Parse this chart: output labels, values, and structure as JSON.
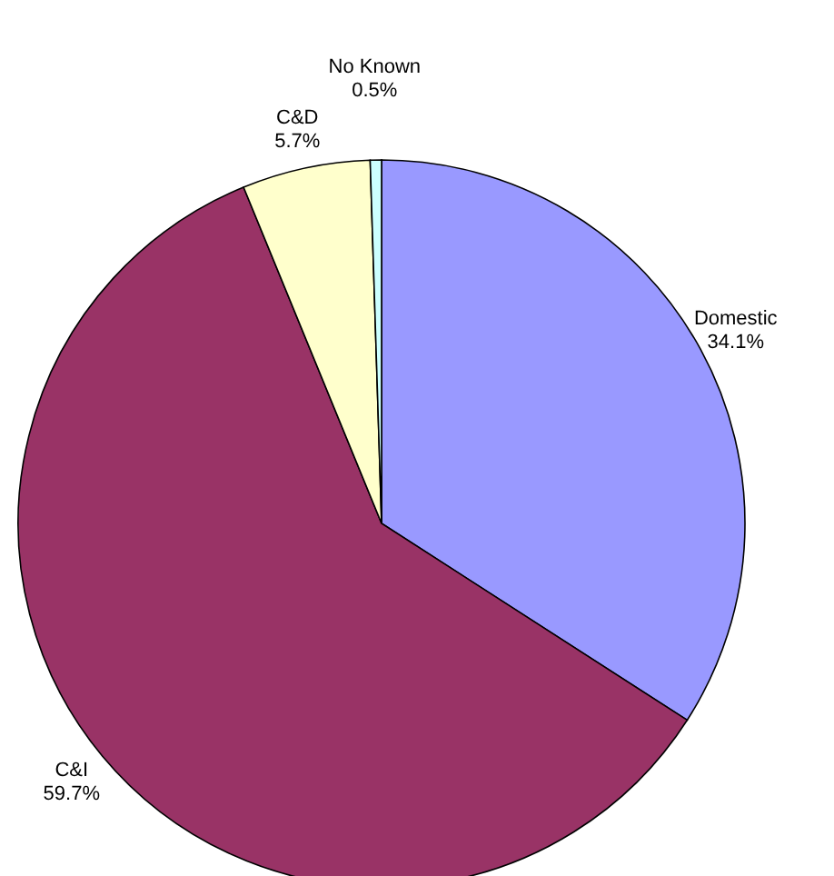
{
  "chart_data": {
    "type": "pie",
    "categories": [
      "Domestic",
      "C&I",
      "C&D",
      "No Known"
    ],
    "values": [
      34.1,
      59.7,
      5.7,
      0.5
    ],
    "colors": [
      "#9999ff",
      "#993366",
      "#ffffcc",
      "#ccffff"
    ],
    "value_labels": [
      "34.1%",
      "59.7%",
      "5.7%",
      "0.5%"
    ]
  }
}
